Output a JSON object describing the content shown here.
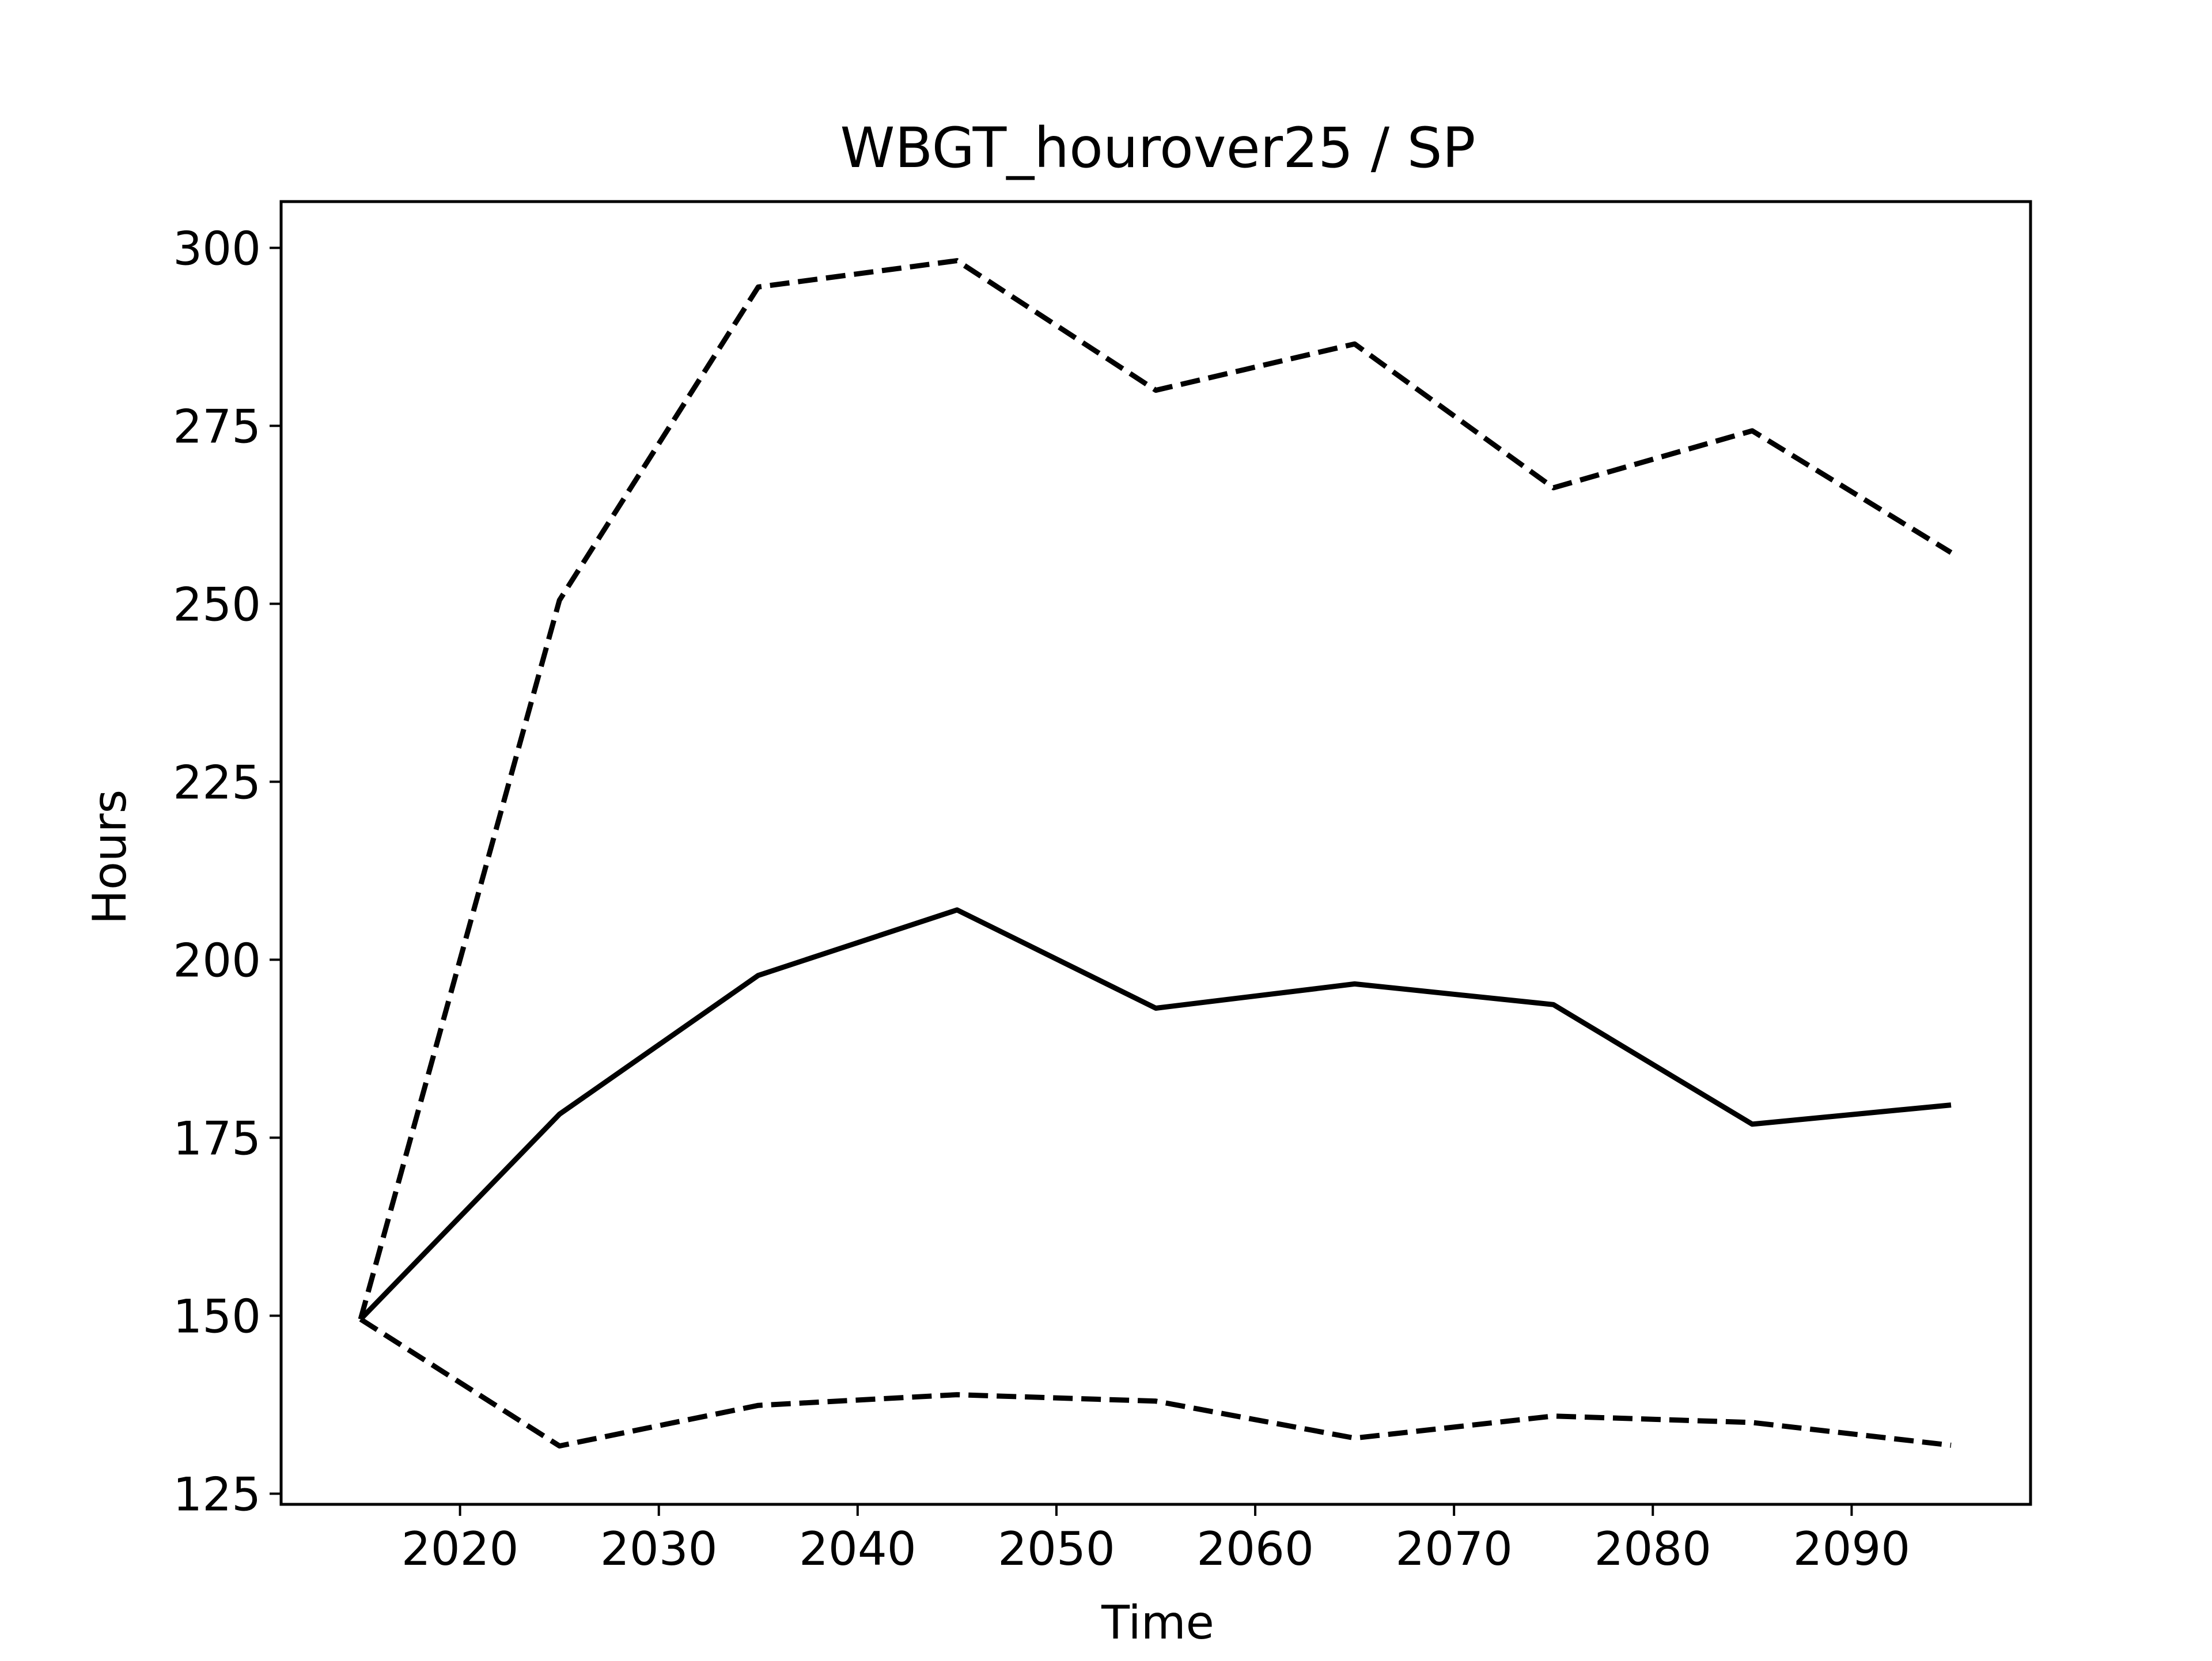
{
  "chart_data": {
    "type": "line",
    "title": "WBGT_hourover25 / SP",
    "xlabel": "Time",
    "ylabel": "Hours",
    "x": [
      2015,
      2025,
      2035,
      2045,
      2055,
      2065,
      2075,
      2085,
      2095
    ],
    "xlim": [
      2011,
      2099
    ],
    "ylim": [
      123.5,
      306.5
    ],
    "xticks": [
      2020,
      2030,
      2040,
      2050,
      2060,
      2070,
      2080,
      2090
    ],
    "yticks": [
      125,
      150,
      175,
      200,
      225,
      250,
      275,
      300
    ],
    "xtick_labels": [
      "2020",
      "2030",
      "2040",
      "2050",
      "2060",
      "2070",
      "2080",
      "2090"
    ],
    "ytick_labels": [
      "125",
      "150",
      "175",
      "200",
      "225",
      "250",
      "275",
      "300"
    ],
    "grid": false,
    "legend": "none",
    "series": [
      {
        "style": "dashed",
        "color": "#000000",
        "values": [
          149.5,
          250.5,
          294.5,
          298.2,
          280.0,
          286.5,
          266.3,
          274.3,
          257.2
        ]
      },
      {
        "style": "solid",
        "color": "#000000",
        "values": [
          149.5,
          178.3,
          197.8,
          207.0,
          193.2,
          196.6,
          193.7,
          176.9,
          179.6
        ]
      },
      {
        "style": "dashed",
        "color": "#000000",
        "values": [
          149.5,
          131.7,
          137.4,
          138.9,
          138.0,
          132.8,
          135.9,
          135.0,
          131.8
        ]
      }
    ]
  }
}
